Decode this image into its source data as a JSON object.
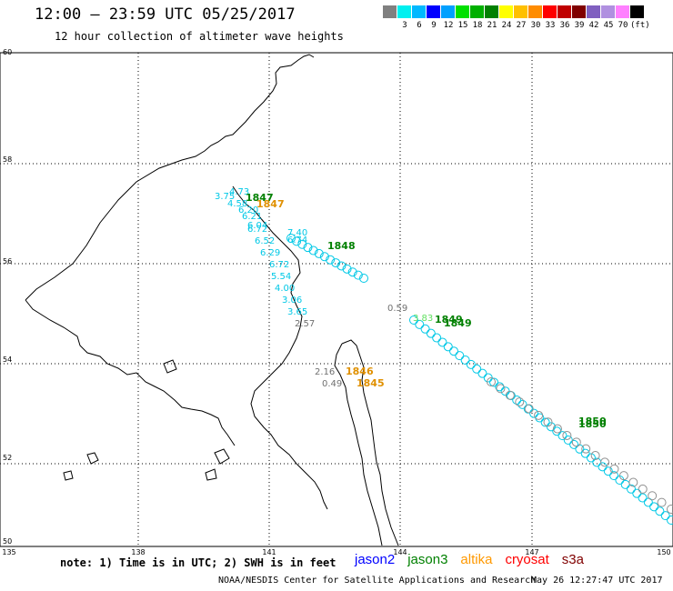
{
  "header": {
    "title": "12:00 – 23:59 UTC 05/25/2017",
    "subtitle": "12 hour collection of altimeter wave heights"
  },
  "colorbar": {
    "colors": [
      "#808080",
      "#00f0f0",
      "#00b8ff",
      "#0000ff",
      "#00a0ff",
      "#00e000",
      "#00b000",
      "#008000",
      "#ffff00",
      "#ffc000",
      "#ff8c00",
      "#ff0000",
      "#c00000",
      "#800000",
      "#8060c0",
      "#b090e0",
      "#ff80ff",
      "#000000"
    ],
    "labels": [
      "",
      "3",
      "6",
      "9",
      "12",
      "15",
      "18",
      "21",
      "24",
      "27",
      "30",
      "33",
      "36",
      "39",
      "42",
      "45",
      "70",
      "(ft)"
    ]
  },
  "axes": {
    "lat_ticks": [
      "60",
      "58",
      "56",
      "54",
      "52",
      "50"
    ],
    "lon_ticks": [
      "135",
      "138",
      "141",
      "144",
      "147",
      "150"
    ]
  },
  "map_data": {
    "pass_times": [
      {
        "text": "1847",
        "color": "#008000"
      },
      {
        "text": "1847",
        "color": "#e09000"
      },
      {
        "text": "1848",
        "color": "#008000"
      },
      {
        "text": "1849",
        "color": "#008000"
      },
      {
        "text": "1849",
        "color": "#008000"
      },
      {
        "text": "1850",
        "color": "#008000"
      },
      {
        "text": "1850",
        "color": "#008000"
      },
      {
        "text": "1846",
        "color": "#e09000"
      },
      {
        "text": "1845",
        "color": "#e09000"
      }
    ],
    "track1_values": [
      "4.73",
      "3.75",
      "4.58",
      "6.20",
      "6.21",
      "6.04",
      "6.72",
      "7.40",
      "6.52",
      "6.74",
      "6.29",
      "6.72",
      "5.54",
      "4.00",
      "3.06",
      "3.65",
      "2.57"
    ],
    "misc_values": [
      "0.59",
      "2.16",
      "0.49",
      "3.83"
    ]
  },
  "footer": {
    "note": "note:  1) Time is in UTC;  2) SWH is in feet",
    "satellites": [
      {
        "name": "jason2",
        "color": "#0000ff"
      },
      {
        "name": "jason3",
        "color": "#008000"
      },
      {
        "name": "altika",
        "color": "#ff9900"
      },
      {
        "name": "cryosat",
        "color": "#ff0000"
      },
      {
        "name": "s3a",
        "color": "#800000"
      }
    ],
    "credit": "NOAA/NESDIS Center for Satellite Applications and Research",
    "timestamp": "May 26 12:27:47 UTC 2017"
  }
}
